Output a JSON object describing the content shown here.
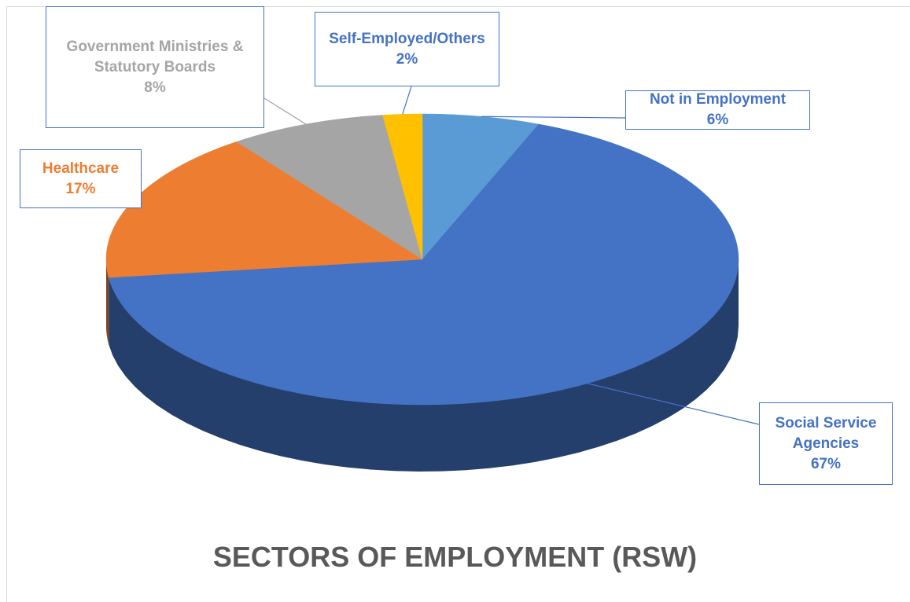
{
  "chart_data": {
    "type": "pie3d",
    "title": "SECTORS OF EMPLOYMENT (RSW)",
    "categories": [
      "Not in Employment",
      "Social Service Agencies",
      "Healthcare",
      "Government Ministries & Statutory Boards",
      "Self-Employed/Others"
    ],
    "values": [
      6,
      67,
      17,
      8,
      2
    ],
    "value_labels": [
      "6%",
      "67%",
      "17%",
      "8%",
      "2%"
    ],
    "colors": [
      "#5b9bd5",
      "#4472c4",
      "#ed7d31",
      "#a5a5a5",
      "#ffc000"
    ],
    "label_colors": [
      "#4472c4",
      "#4472c4",
      "#ed7d31",
      "#a5a5a5",
      "#4472c4"
    ]
  }
}
